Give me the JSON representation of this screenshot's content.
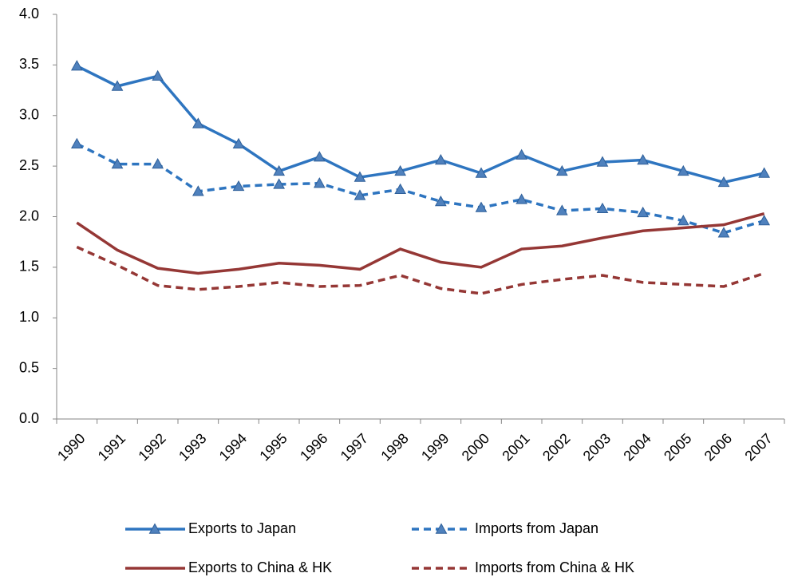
{
  "chart_data": {
    "type": "line",
    "categories": [
      "1990",
      "1991",
      "1992",
      "1993",
      "1994",
      "1995",
      "1996",
      "1997",
      "1998",
      "1999",
      "2000",
      "2001",
      "2002",
      "2003",
      "2004",
      "2005",
      "2006",
      "2007"
    ],
    "series": [
      {
        "name": "Exports to Japan",
        "color": "#2e75c0",
        "dashed": false,
        "marker": "triangle",
        "values": [
          3.49,
          3.29,
          3.39,
          2.92,
          2.72,
          2.45,
          2.59,
          2.39,
          2.45,
          2.56,
          2.43,
          2.61,
          2.45,
          2.54,
          2.56,
          2.45,
          2.34,
          2.43
        ]
      },
      {
        "name": "Imports from Japan",
        "color": "#2e75c0",
        "dashed": true,
        "marker": "triangle",
        "values": [
          2.72,
          2.52,
          2.52,
          2.25,
          2.3,
          2.32,
          2.33,
          2.21,
          2.27,
          2.15,
          2.09,
          2.17,
          2.06,
          2.08,
          2.04,
          1.96,
          1.84,
          1.96
        ]
      },
      {
        "name": "Exports to China & HK",
        "color": "#953735",
        "dashed": false,
        "marker": "none",
        "values": [
          1.94,
          1.67,
          1.49,
          1.44,
          1.48,
          1.54,
          1.52,
          1.48,
          1.68,
          1.55,
          1.5,
          1.68,
          1.71,
          1.79,
          1.86,
          1.89,
          1.92,
          2.03
        ]
      },
      {
        "name": "Imports from China & HK",
        "color": "#953735",
        "dashed": true,
        "marker": "none",
        "values": [
          1.7,
          1.52,
          1.32,
          1.28,
          1.31,
          1.35,
          1.31,
          1.32,
          1.42,
          1.29,
          1.24,
          1.33,
          1.38,
          1.42,
          1.35,
          1.33,
          1.31,
          1.44
        ]
      }
    ],
    "ylim": [
      0,
      4
    ],
    "yticks": [
      {
        "value": 0,
        "label": "0.0"
      },
      0.5,
      {
        "value": 1,
        "label": "1.0"
      },
      1.5,
      {
        "value": 2,
        "label": "2.0"
      },
      2.5,
      {
        "value": 3,
        "label": "3.0"
      },
      3.5,
      {
        "value": 4,
        "label": "4.0"
      }
    ],
    "grid": false,
    "legend": "bottom"
  }
}
